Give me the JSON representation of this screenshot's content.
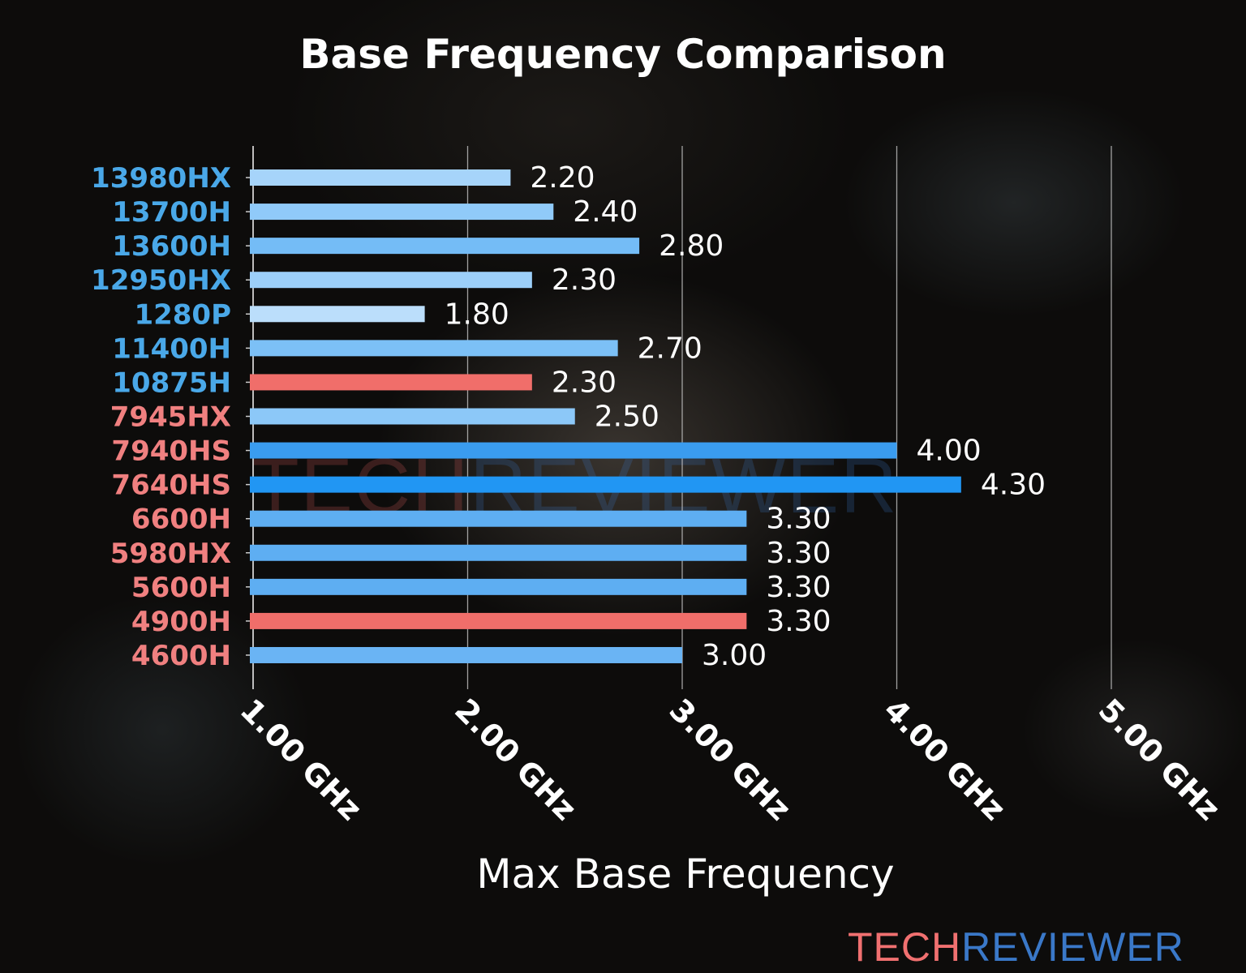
{
  "chart_data": {
    "type": "bar",
    "orientation": "horizontal",
    "title": "Base Frequency Comparison",
    "xlabel": "Max Base Frequency",
    "ylabel": "",
    "xlim": [
      1.0,
      5.0
    ],
    "xticks": [
      1,
      2,
      3,
      4,
      5
    ],
    "xtick_labels": [
      "1.00 GHz",
      "2.00 GHz",
      "3.00 GHz",
      "4.00 GHz",
      "5.00 GHz"
    ],
    "grid": "vertical",
    "categories": [
      "13980HX",
      "13700H",
      "13600H",
      "12950HX",
      "1280P",
      "11400H",
      "10875H",
      "7945HX",
      "7940HS",
      "7640HS",
      "6600H",
      "5980HX",
      "5600H",
      "4900H",
      "4600H"
    ],
    "values": [
      2.2,
      2.4,
      2.8,
      2.3,
      1.8,
      2.7,
      2.3,
      2.5,
      4.0,
      4.3,
      3.3,
      3.3,
      3.3,
      3.3,
      3.0
    ],
    "value_labels": [
      "2.20",
      "2.40",
      "2.80",
      "2.30",
      "1.80",
      "2.70",
      "2.30",
      "2.50",
      "4.00",
      "4.30",
      "3.30",
      "3.30",
      "3.30",
      "3.30",
      "3.00"
    ],
    "bar_colors": [
      "#a6d4fa",
      "#90caf9",
      "#74bcf6",
      "#9ccff9",
      "#bbdefb",
      "#7cc0f6",
      "#f06e6a",
      "#8cc8f8",
      "#3a9cef",
      "#2196f3",
      "#5eaef2",
      "#5eaef2",
      "#5eaef2",
      "#f06e6a",
      "#6ab4f4"
    ],
    "label_colors": [
      "#4aa8e8",
      "#4aa8e8",
      "#4aa8e8",
      "#4aa8e8",
      "#4aa8e8",
      "#4aa8e8",
      "#4aa8e8",
      "#f08080",
      "#f08080",
      "#f08080",
      "#f08080",
      "#f08080",
      "#f08080",
      "#f08080",
      "#f08080"
    ]
  },
  "branding": {
    "logo_part1": "TECH",
    "logo_part2": "REVIEWER",
    "logo_color1": "#f07070",
    "logo_color2": "#3a78c8",
    "watermark": "TECHREVIEWER"
  }
}
